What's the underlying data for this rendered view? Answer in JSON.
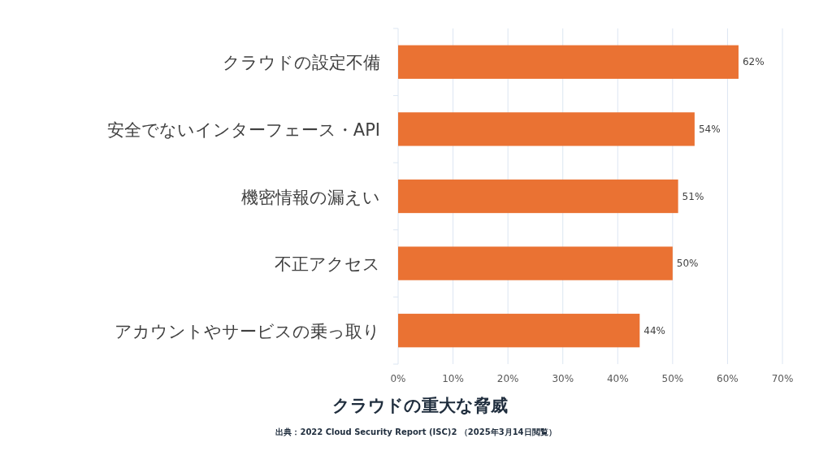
{
  "chart_data": {
    "type": "bar",
    "orientation": "horizontal",
    "title": "クラウドの重大な脅威",
    "categories": [
      "クラウドの設定不備",
      "安全でないインターフェース・API",
      "機密情報の漏えい",
      "不正アクセス",
      "アカウントやサービスの乗っ取り"
    ],
    "values": [
      62,
      54,
      51,
      50,
      44
    ],
    "value_labels": [
      "62%",
      "54%",
      "51%",
      "50%",
      "44%"
    ],
    "color": "#ea7233",
    "xlim": [
      0,
      70
    ],
    "xticks": [
      {
        "value": 0,
        "label": "0%"
      },
      {
        "value": 10,
        "label": "10%"
      },
      {
        "value": 20,
        "label": "20%"
      },
      {
        "value": 30,
        "label": "30%"
      },
      {
        "value": 40,
        "label": "40%"
      },
      {
        "value": 50,
        "label": "50%"
      },
      {
        "value": 60,
        "label": "60%"
      },
      {
        "value": 70,
        "label": "70%"
      }
    ],
    "grid": "x",
    "annotations": [
      "出典：2022 Cloud Security Report (ISC)2 （2025年3月14日閲覧）"
    ]
  }
}
